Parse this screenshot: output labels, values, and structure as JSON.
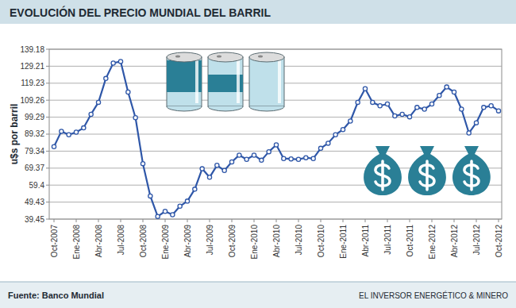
{
  "chart_data": {
    "type": "line",
    "title": "EVOLUCIÓN DEL PRECIO MUNDIAL DEL BARRIL",
    "y_label": "u$s por barril",
    "source": "Fuente: Banco Mundial",
    "credit": "EL INVERSOR ENERGÉTICO & MINERO",
    "categories": [
      "Oct-2007",
      null,
      null,
      "Ene-2008",
      null,
      null,
      "Abr-2008",
      null,
      null,
      "Jul-2008",
      null,
      null,
      "Oct-2008",
      null,
      null,
      "Ene-2009",
      null,
      null,
      "Abr-2009",
      null,
      null,
      "Jul-2009",
      null,
      null,
      "Oct-2009",
      null,
      null,
      "Ene-2010",
      null,
      null,
      "Abr-2010",
      null,
      null,
      "Jul-2010",
      null,
      null,
      "Oct-2010",
      null,
      null,
      "Ene-2011",
      null,
      null,
      "Abr-2011",
      null,
      null,
      "Jul-2011",
      null,
      null,
      "Oct-2011",
      null,
      null,
      "Ene-2012",
      null,
      null,
      "Abr-2012",
      null,
      null,
      "Jul-2012",
      null,
      null,
      "Oct-2012"
    ],
    "values": [
      82,
      91,
      89,
      90.5,
      93,
      101,
      108,
      122,
      131,
      132,
      114,
      99,
      72,
      53,
      41,
      44,
      42,
      47,
      50,
      57,
      69,
      64,
      71,
      68,
      73,
      77,
      74.5,
      77,
      74,
      79,
      83,
      75,
      74.8,
      74.5,
      75.5,
      75,
      81,
      84,
      89,
      92,
      97,
      108,
      116,
      108,
      106,
      107,
      100,
      101,
      99.5,
      105,
      104,
      107,
      112,
      117,
      114,
      104,
      90,
      96,
      105,
      106,
      103
    ],
    "color": "#2f57a8",
    "marker": "circle",
    "line_style": "solid",
    "ylim": [
      39.45,
      139.18
    ],
    "yticks": [
      39.45,
      49.43,
      59.4,
      69.37,
      79.34,
      89.32,
      99.29,
      109.26,
      119.23,
      129.21,
      139.18
    ],
    "grid": true
  }
}
